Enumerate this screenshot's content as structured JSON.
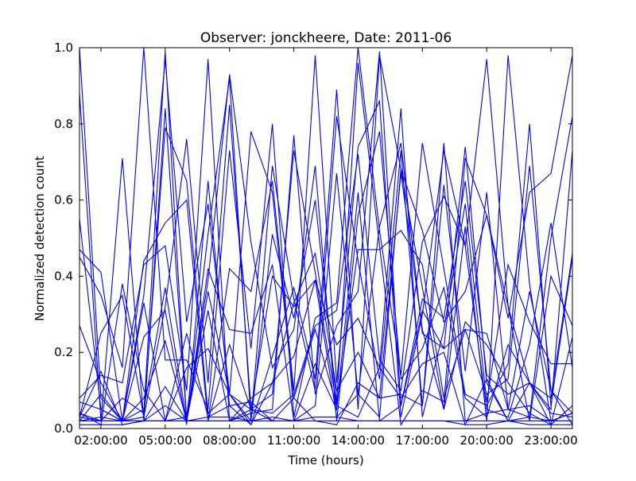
{
  "chart_data": {
    "type": "line",
    "title": "Observer: jonckheere, Date: 2011-06",
    "xlabel": "Time (hours)",
    "ylabel": "Normalized detection count",
    "xlim": [
      "01:00:00",
      "24:00:00"
    ],
    "ylim": [
      0.0,
      1.0
    ],
    "x_ticks": [
      "02:00:00",
      "05:00:00",
      "08:00:00",
      "11:00:00",
      "14:00:00",
      "17:00:00",
      "20:00:00",
      "23:00:00"
    ],
    "y_ticks": [
      "0.0",
      "0.2",
      "0.4",
      "0.6",
      "0.8",
      "1.0"
    ],
    "grid": false,
    "legend": "none",
    "line_color": "#0000ff",
    "x": [
      "01:00:00",
      "02:00:00",
      "03:00:00",
      "04:00:00",
      "05:00:00",
      "06:00:00",
      "07:00:00",
      "08:00:00",
      "09:00:00",
      "10:00:00",
      "11:00:00",
      "12:00:00",
      "13:00:00",
      "14:00:00",
      "15:00:00",
      "16:00:00",
      "17:00:00",
      "18:00:00",
      "19:00:00",
      "20:00:00",
      "21:00:00",
      "22:00:00",
      "23:00:00",
      "24:00:00"
    ],
    "series": [
      {
        "values": [
          1.0,
          0.08,
          0.02,
          0.03,
          0.32,
          0.76,
          0.12,
          0.85,
          0.05,
          0.09,
          0.73,
          0.41,
          0.06,
          0.03,
          0.16,
          0.08,
          0.17,
          0.2,
          0.01,
          0.13,
          0.02,
          0.12,
          0.05,
          0.73
        ]
      },
      {
        "values": [
          0.02,
          0.02,
          0.02,
          0.02,
          0.11,
          0.02,
          0.02,
          0.42,
          0.36,
          0.65,
          0.1,
          0.98,
          0.12,
          0.74,
          0.86,
          0.03,
          0.3,
          0.73,
          0.48,
          0.05,
          0.03,
          0.22,
          0.54,
          0.16
        ]
      },
      {
        "values": [
          0.45,
          0.35,
          0.16,
          1.0,
          0.18,
          0.18,
          0.05,
          0.73,
          0.21,
          0.8,
          0.03,
          0.29,
          0.33,
          1.0,
          0.52,
          0.14,
          0.75,
          0.42,
          0.09,
          0.06,
          0.17,
          0.8,
          0.06,
          0.45
        ]
      },
      {
        "values": [
          0.27,
          0.12,
          0.02,
          0.35,
          0.97,
          0.28,
          0.59,
          0.09,
          0.78,
          0.62,
          0.08,
          0.26,
          0.06,
          0.47,
          0.47,
          0.52,
          0.43,
          0.08,
          0.26,
          0.09,
          0.13,
          0.69,
          0.1,
          0.04
        ]
      },
      {
        "values": [
          0.03,
          0.15,
          0.01,
          0.02,
          0.06,
          0.02,
          0.02,
          0.02,
          0.04,
          0.05,
          0.77,
          0.09,
          0.27,
          0.36,
          0.99,
          0.06,
          0.34,
          0.29,
          0.65,
          0.14,
          0.09,
          0.12,
          0.04,
          0.03
        ]
      },
      {
        "values": [
          0.88,
          0.02,
          0.08,
          0.04,
          0.99,
          0.02,
          0.39,
          0.93,
          0.49,
          0.16,
          0.26,
          0.69,
          0.02,
          0.56,
          0.78,
          0.13,
          0.21,
          0.37,
          0.08,
          0.03,
          0.22,
          0.12,
          0.01,
          0.24
        ]
      },
      {
        "values": [
          0.47,
          0.41,
          0.02,
          0.24,
          0.31,
          0.01,
          0.65,
          0.06,
          0.01,
          0.19,
          0.37,
          0.13,
          0.89,
          0.05,
          0.98,
          0.68,
          0.52,
          0.28,
          0.36,
          0.56,
          0.29,
          0.62,
          0.67,
          0.98
        ]
      },
      {
        "values": [
          0.04,
          0.01,
          0.38,
          0.1,
          0.02,
          0.03,
          0.51,
          0.92,
          0.02,
          0.51,
          0.29,
          0.6,
          0.07,
          0.96,
          0.48,
          0.01,
          0.1,
          0.07,
          0.71,
          0.56,
          0.32,
          0.12,
          0.08,
          0.46
        ]
      },
      {
        "values": [
          0.08,
          0.14,
          0.12,
          0.43,
          0.48,
          0.1,
          0.97,
          0.02,
          0.05,
          0.04,
          0.09,
          0.27,
          0.31,
          0.72,
          0.18,
          0.1,
          0.49,
          0.61,
          0.48,
          0.97,
          0.32,
          0.02,
          0.4,
          0.27
        ]
      },
      {
        "values": [
          0.07,
          0.05,
          0.02,
          0.05,
          0.37,
          0.02,
          0.36,
          0.09,
          0.05,
          0.4,
          0.32,
          0.39,
          0.22,
          0.29,
          0.16,
          0.84,
          0.03,
          0.26,
          0.59,
          0.07,
          0.43,
          0.28,
          0.17,
          0.17
        ]
      },
      {
        "values": [
          0.55,
          0.05,
          0.02,
          0.02,
          0.84,
          0.02,
          0.42,
          0.26,
          0.25,
          0.43,
          0.02,
          0.06,
          0.67,
          0.09,
          0.03,
          0.68,
          0.37,
          0.05,
          0.53,
          0.02,
          0.98,
          0.38,
          0.02,
          0.04
        ]
      },
      {
        "values": [
          0.03,
          0.25,
          0.35,
          0.03,
          0.79,
          0.65,
          0.04,
          0.09,
          0.02,
          0.69,
          0.34,
          0.1,
          0.82,
          0.44,
          0.13,
          0.73,
          0.06,
          0.64,
          0.15,
          0.62,
          0.05,
          0.06,
          0.02,
          0.02
        ]
      },
      {
        "values": [
          0.02,
          0.03,
          0.02,
          0.44,
          0.54,
          0.6,
          0.02,
          0.22,
          0.05,
          0.02,
          0.02,
          0.17,
          0.05,
          0.62,
          0.02,
          0.06,
          0.31,
          0.21,
          0.26,
          0.25,
          0.05,
          0.36,
          0.1,
          0.01
        ]
      },
      {
        "values": [
          0.02,
          0.09,
          0.02,
          0.33,
          0.02,
          0.16,
          0.21,
          0.09,
          0.01,
          0.12,
          0.33,
          0.46,
          0.1,
          0.2,
          0.08,
          0.09,
          0.06,
          0.75,
          0.02,
          0.04,
          0.05,
          0.03,
          0.5,
          0.82
        ]
      },
      {
        "values": [
          0.04,
          0.02,
          0.02,
          0.08,
          0.23,
          0.02,
          0.31,
          0.02,
          0.08,
          0.12,
          0.19,
          0.39,
          0.03,
          0.09,
          0.53,
          0.75,
          0.25,
          0.21,
          0.74,
          0.12,
          0.02,
          0.03,
          0.02,
          0.04
        ]
      },
      {
        "values": [
          0.03,
          0.02,
          0.71,
          0.02,
          0.02,
          0.25,
          0.03,
          0.06,
          0.07,
          0.02,
          0.08,
          0.02,
          0.01,
          0.12,
          0.08,
          0.67,
          0.26,
          0.05,
          0.28,
          0.22,
          0.12,
          0.04,
          0.01,
          0.06
        ]
      },
      {
        "values": [
          0.02,
          0.02,
          0.02,
          0.02,
          0.02,
          0.02,
          0.02,
          0.02,
          0.02,
          0.02,
          0.02,
          0.02,
          0.02,
          0.02,
          0.02,
          0.02,
          0.02,
          0.02,
          0.02,
          0.02,
          0.02,
          0.02,
          0.02,
          0.02
        ]
      },
      {
        "values": [
          0.01,
          0.01,
          0.01,
          0.02,
          0.02,
          0.02,
          0.03,
          0.03,
          0.02,
          0.03,
          0.02,
          0.03,
          0.03,
          0.02,
          0.02,
          0.02,
          0.02,
          0.02,
          0.01,
          0.01,
          0.02,
          0.01,
          0.01,
          0.01
        ]
      }
    ]
  }
}
